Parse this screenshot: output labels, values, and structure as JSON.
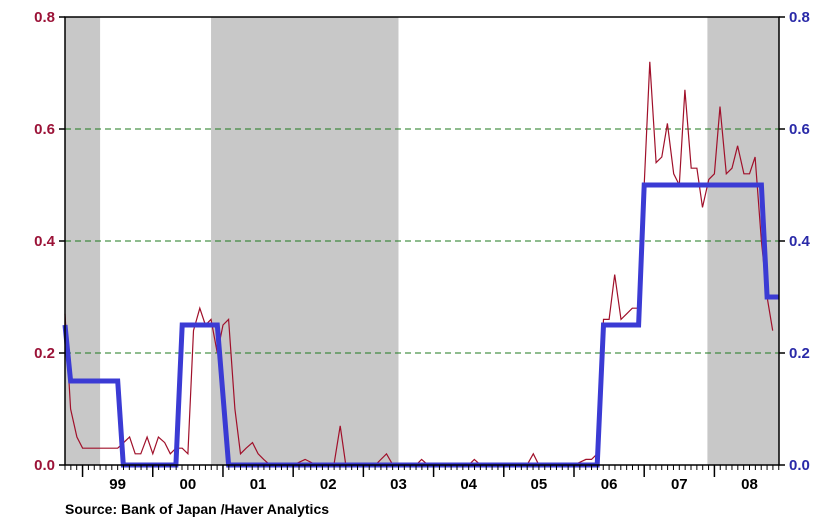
{
  "colors": {
    "left_axis": "#9b1237",
    "right_axis": "#2a2aa8",
    "series_thin": "#a0102a",
    "series_thick": "#3b3bd4",
    "shading": "#c8c8c8",
    "grid": "#1e7a1e"
  },
  "source": "Source:  Bank of Japan /Haver Analytics",
  "chart_data": {
    "type": "line",
    "title": "",
    "xlabel": "",
    "ylabel": "",
    "xlim": [
      1998.75,
      2008.92
    ],
    "ylim": [
      0,
      0.8
    ],
    "grid": true,
    "y_ticks": [
      "0.0",
      "0.2",
      "0.4",
      "0.6",
      "0.8"
    ],
    "y_tick_values": [
      0,
      0.2,
      0.4,
      0.6,
      0.8
    ],
    "x_ticks": [
      {
        "label": "99",
        "value": 1999.5
      },
      {
        "label": "00",
        "value": 2000.5
      },
      {
        "label": "01",
        "value": 2001.5
      },
      {
        "label": "02",
        "value": 2002.5
      },
      {
        "label": "03",
        "value": 2003.5
      },
      {
        "label": "04",
        "value": 2004.5
      },
      {
        "label": "05",
        "value": 2005.5
      },
      {
        "label": "06",
        "value": 2006.5
      },
      {
        "label": "07",
        "value": 2007.5
      },
      {
        "label": "08",
        "value": 2008.5
      }
    ],
    "year_starts": [
      1999,
      2000,
      2001,
      2002,
      2003,
      2004,
      2005,
      2006,
      2007,
      2008
    ],
    "shaded_periods": [
      [
        1998.75,
        1999.25
      ],
      [
        2000.83,
        2003.5
      ],
      [
        2007.9,
        2008.92
      ]
    ],
    "series": [
      {
        "values": [
          [
            1998.75,
            0.27
          ],
          [
            1998.83,
            0.1
          ],
          [
            1998.92,
            0.05
          ],
          [
            1999.0,
            0.03
          ],
          [
            1999.17,
            0.03
          ],
          [
            1999.33,
            0.03
          ],
          [
            1999.5,
            0.03
          ],
          [
            1999.67,
            0.05
          ],
          [
            1999.75,
            0.02
          ],
          [
            1999.83,
            0.02
          ],
          [
            1999.92,
            0.05
          ],
          [
            2000.0,
            0.02
          ],
          [
            2000.08,
            0.05
          ],
          [
            2000.17,
            0.04
          ],
          [
            2000.25,
            0.02
          ],
          [
            2000.33,
            0.03
          ],
          [
            2000.42,
            0.03
          ],
          [
            2000.5,
            0.02
          ],
          [
            2000.58,
            0.24
          ],
          [
            2000.67,
            0.28
          ],
          [
            2000.75,
            0.25
          ],
          [
            2000.83,
            0.26
          ],
          [
            2000.92,
            0.2
          ],
          [
            2001.0,
            0.25
          ],
          [
            2001.08,
            0.26
          ],
          [
            2001.17,
            0.1
          ],
          [
            2001.25,
            0.02
          ],
          [
            2001.33,
            0.03
          ],
          [
            2001.42,
            0.04
          ],
          [
            2001.5,
            0.02
          ],
          [
            2001.58,
            0.01
          ],
          [
            2001.67,
            0.0
          ],
          [
            2002.0,
            0.0
          ],
          [
            2002.17,
            0.01
          ],
          [
            2002.33,
            0.0
          ],
          [
            2002.58,
            0.0
          ],
          [
            2002.67,
            0.07
          ],
          [
            2002.75,
            0.0
          ],
          [
            2003.17,
            0.0
          ],
          [
            2003.33,
            0.02
          ],
          [
            2003.42,
            0.0
          ],
          [
            2003.75,
            0.0
          ],
          [
            2003.83,
            0.01
          ],
          [
            2003.92,
            0.0
          ],
          [
            2004.5,
            0.0
          ],
          [
            2004.58,
            0.01
          ],
          [
            2004.67,
            0.0
          ],
          [
            2005.33,
            0.0
          ],
          [
            2005.42,
            0.02
          ],
          [
            2005.5,
            0.0
          ],
          [
            2006.0,
            0.0
          ],
          [
            2006.17,
            0.01
          ],
          [
            2006.25,
            0.01
          ],
          [
            2006.33,
            0.02
          ],
          [
            2006.42,
            0.26
          ],
          [
            2006.5,
            0.26
          ],
          [
            2006.58,
            0.34
          ],
          [
            2006.67,
            0.26
          ],
          [
            2006.75,
            0.27
          ],
          [
            2006.83,
            0.28
          ],
          [
            2006.92,
            0.28
          ],
          [
            2007.0,
            0.5
          ],
          [
            2007.08,
            0.72
          ],
          [
            2007.17,
            0.54
          ],
          [
            2007.25,
            0.55
          ],
          [
            2007.33,
            0.61
          ],
          [
            2007.42,
            0.52
          ],
          [
            2007.5,
            0.5
          ],
          [
            2007.58,
            0.67
          ],
          [
            2007.67,
            0.53
          ],
          [
            2007.75,
            0.53
          ],
          [
            2007.83,
            0.46
          ],
          [
            2007.92,
            0.51
          ],
          [
            2008.0,
            0.52
          ],
          [
            2008.08,
            0.64
          ],
          [
            2008.17,
            0.52
          ],
          [
            2008.25,
            0.53
          ],
          [
            2008.33,
            0.57
          ],
          [
            2008.42,
            0.52
          ],
          [
            2008.5,
            0.52
          ],
          [
            2008.58,
            0.55
          ],
          [
            2008.67,
            0.4
          ],
          [
            2008.75,
            0.3
          ],
          [
            2008.83,
            0.24
          ]
        ]
      },
      {
        "values": [
          [
            1998.75,
            0.25
          ],
          [
            1998.83,
            0.15
          ],
          [
            1999.5,
            0.15
          ],
          [
            1999.58,
            0.0
          ],
          [
            2000.33,
            0.0
          ],
          [
            2000.42,
            0.25
          ],
          [
            2000.92,
            0.25
          ],
          [
            2001.08,
            0.0
          ],
          [
            2006.33,
            0.0
          ],
          [
            2006.42,
            0.25
          ],
          [
            2006.92,
            0.25
          ],
          [
            2007.0,
            0.5
          ],
          [
            2008.67,
            0.5
          ],
          [
            2008.75,
            0.3
          ],
          [
            2008.92,
            0.3
          ]
        ]
      }
    ]
  }
}
